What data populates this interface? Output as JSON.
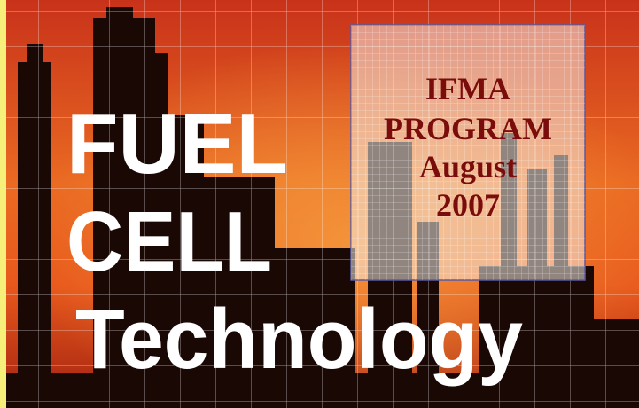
{
  "slide": {
    "title_lines": [
      "FUEL",
      "CELL",
      "Technology"
    ],
    "box_lines": [
      "IFMA",
      "PROGRAM",
      "August",
      "2007"
    ]
  }
}
